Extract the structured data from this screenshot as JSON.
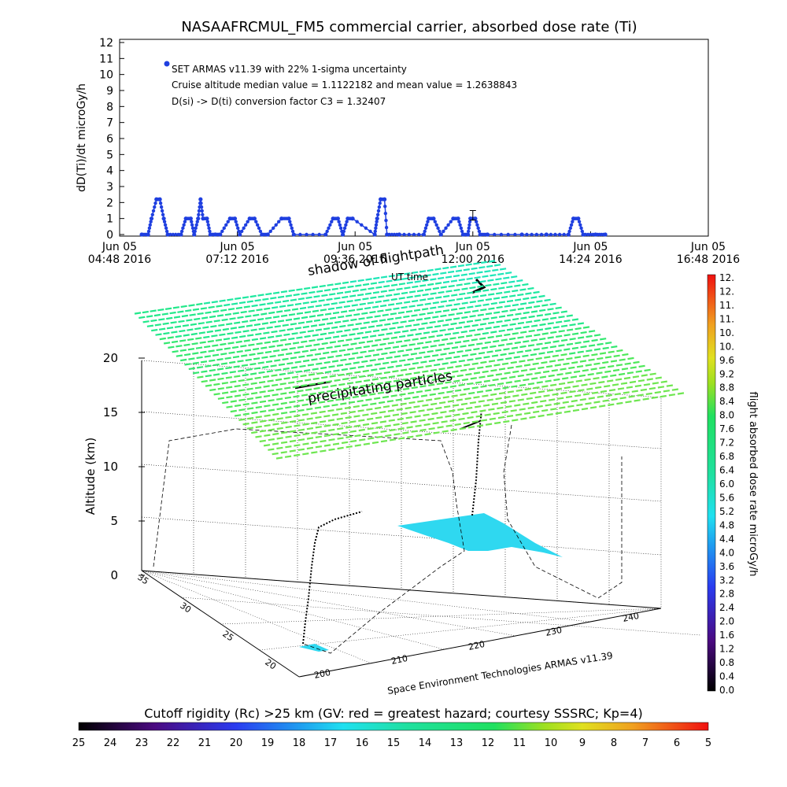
{
  "chart_data": [
    {
      "type": "scatter",
      "title": "NASAAFRCMUL_FM5 commercial carrier, absorbed dose rate (Ti)",
      "ylabel": "dD(Ti)/dt microGy/h",
      "xlabel": "",
      "ylim": [
        0,
        12
      ],
      "y_ticks": [
        "0",
        "1",
        "2",
        "3",
        "4",
        "5",
        "6",
        "7",
        "8",
        "9",
        "10",
        "11",
        "12"
      ],
      "x_ticks": [
        {
          "line1": "Jun 05",
          "line2": "04:48 2016"
        },
        {
          "line1": "Jun 05",
          "line2": "07:12 2016"
        },
        {
          "line1": "Jun 05",
          "line2": "09:36 2016"
        },
        {
          "line1": "Jun 05",
          "line2": "12:00 2016"
        },
        {
          "line1": "Jun 05",
          "line2": "14:24 2016"
        },
        {
          "line1": "Jun 05",
          "line2": "16:48 2016"
        }
      ],
      "x_range_hours": [
        4.8,
        16.8
      ],
      "legend_lines": [
        "SET ARMAS v11.39 with 22% 1-sigma uncertainty",
        "Cruise altitude median value = 1.1122182 and mean value = 1.2638843",
        "D(si) -> D(ti) conversion factor C3 = 1.32407"
      ],
      "series_color": "#1f3fe0",
      "error_bar": {
        "x": 12.0,
        "y": 1.2,
        "err": 0.3
      },
      "series": [
        {
          "x": [
            5.25,
            5.38,
            5.45,
            5.55,
            5.62,
            5.7,
            5.78,
            6.05,
            6.15,
            6.25,
            6.32,
            6.4,
            6.45,
            6.5,
            6.58,
            6.65,
            6.75,
            6.85,
            7.05,
            7.15,
            7.25,
            7.45,
            7.55,
            7.7,
            7.82,
            8.1,
            8.25,
            8.35,
            9.0,
            9.15,
            9.25,
            9.35,
            9.45,
            9.55,
            10.0,
            10.05,
            10.12,
            10.2,
            10.25,
            10.5,
            11.0,
            11.1,
            11.2,
            11.35,
            11.6,
            11.7,
            11.8,
            11.9,
            11.95,
            12.05,
            12.15,
            12.3,
            13.0,
            13.5,
            13.95,
            14.05,
            14.15,
            14.25,
            14.5,
            14.7
          ],
          "y": [
            0,
            0,
            1,
            2.2,
            2.2,
            1,
            0,
            0,
            1,
            1,
            0,
            1,
            2.2,
            1,
            1,
            0,
            0,
            0,
            1,
            1,
            0,
            1,
            1,
            0,
            0,
            1,
            1,
            0,
            0,
            1,
            1,
            0,
            1,
            1,
            0,
            1,
            2.2,
            2.2,
            0,
            0,
            0,
            1,
            1,
            0,
            1,
            1,
            0,
            0,
            1,
            1,
            0,
            0,
            0,
            0,
            0,
            1,
            1,
            0,
            0,
            0
          ]
        }
      ]
    },
    {
      "type": "scatter",
      "title": "",
      "zlabel": "Altitude (km)",
      "z_ticks": [
        "0",
        "5",
        "10",
        "15",
        "20"
      ],
      "lat_ticks": [
        "20",
        "25",
        "30",
        "35"
      ],
      "lon_ticks": [
        "200",
        "210",
        "220",
        "230",
        "240"
      ],
      "annotations": {
        "shadow_label": "shadow of flightpath",
        "ut_label": "UT time",
        "precip_label": "precipitating particles",
        "credit": "Space Environment Technologies ARMAS v11.39"
      },
      "grid_color": "#1fe07f",
      "ground_color": "#2fd8f0",
      "track_color": "#000000"
    },
    {
      "type": "heatmap",
      "title": "",
      "label": "flight absorbed dose rate microGy/h",
      "orientation": "vertical",
      "ticks": [
        "0.0",
        "0.4",
        "0.8",
        "1.2",
        "1.6",
        "2.0",
        "2.4",
        "2.8",
        "3.2",
        "3.6",
        "4.0",
        "4.4",
        "4.8",
        "5.2",
        "5.6",
        "6.0",
        "6.4",
        "6.8",
        "7.2",
        "7.6",
        "8.0",
        "8.4",
        "8.8",
        "9.2",
        "9.6",
        "10.",
        "10.",
        "11.",
        "11.",
        "12.",
        "12."
      ],
      "range": [
        0,
        12
      ]
    },
    {
      "type": "heatmap",
      "title": "Cutoff rigidity (Rc) >25 km (GV: red = greatest hazard; courtesy SSSRC; Kp=4)",
      "orientation": "horizontal",
      "ticks": [
        "25",
        "24",
        "23",
        "22",
        "21",
        "20",
        "19",
        "18",
        "17",
        "16",
        "15",
        "14",
        "13",
        "12",
        "11",
        "10",
        "9",
        "8",
        "7",
        "6",
        "5"
      ],
      "range": [
        25,
        5
      ]
    }
  ]
}
